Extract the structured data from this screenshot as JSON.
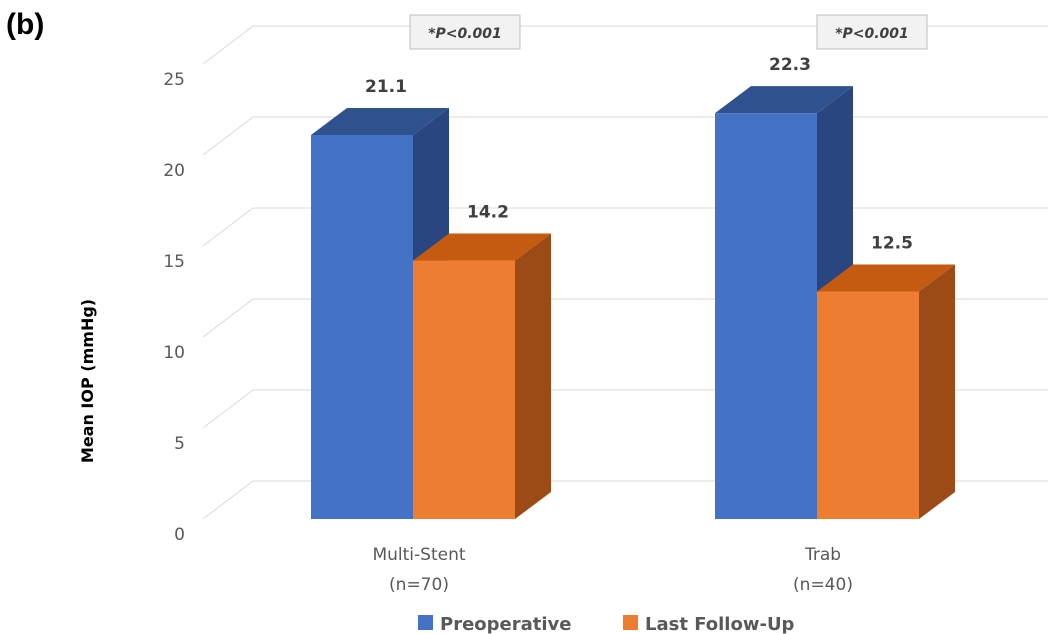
{
  "panel_label": "(b)",
  "colors": {
    "preoperative_front": "#4472c4",
    "preoperative_top": "#2f528f",
    "preoperative_side": "#2a4680",
    "followup_front": "#ed7d31",
    "followup_top": "#c55a11",
    "followup_side": "#9c4a16",
    "grid": "#d9d9d9",
    "pvalue_box": "#f2f2f2"
  },
  "chart_data": {
    "type": "bar",
    "view": "3d-clustered-column",
    "title": "",
    "ylabel": "Mean IOP (mmHg)",
    "xlabel": "",
    "ylim": [
      0,
      25
    ],
    "yticks": [
      0,
      5,
      10,
      15,
      20,
      25
    ],
    "grid": true,
    "legend_position": "bottom",
    "categories": [
      {
        "line1": "Multi-Stent",
        "line2": "(n=70)",
        "pvalue": "*P<0.001"
      },
      {
        "line1": "Trab",
        "line2": "(n=40)",
        "pvalue": "*P<0.001"
      }
    ],
    "series": [
      {
        "name": "Preoperative",
        "values": [
          21.1,
          22.3
        ],
        "labels": [
          "21.1",
          "22.3"
        ]
      },
      {
        "name": "Last Follow-Up",
        "values": [
          14.2,
          12.5
        ],
        "labels": [
          "14.2",
          "12.5"
        ]
      }
    ]
  }
}
